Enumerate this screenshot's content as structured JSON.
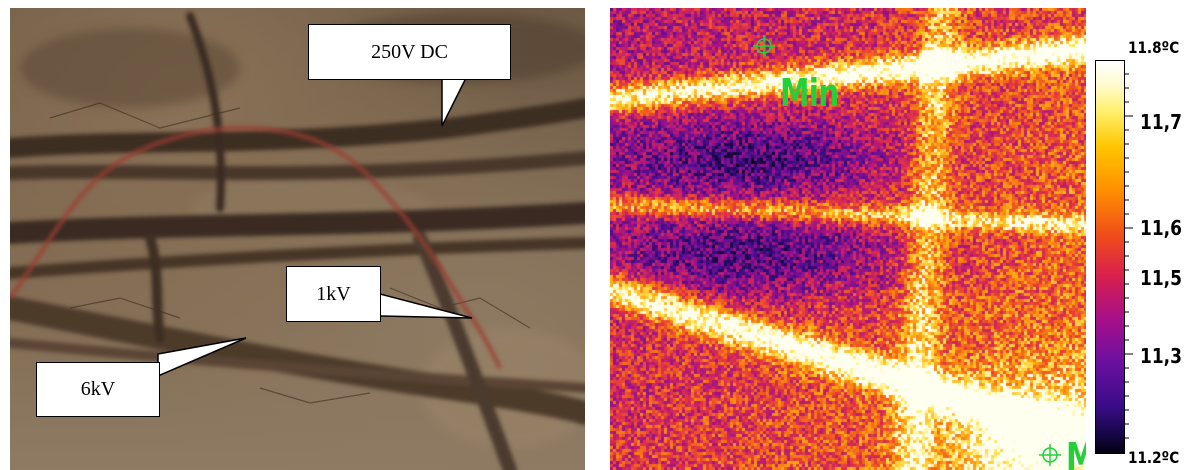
{
  "photo": {
    "callouts": {
      "dc": "250V DC",
      "kv1": "1kV",
      "kv6": "6kV"
    }
  },
  "thermal": {
    "markers": {
      "min_label": "Min",
      "max_label_partial": "M"
    }
  },
  "scale": {
    "max": "11.8ºC",
    "min": "11.2ºC",
    "ticks": [
      "11,7",
      "11,6",
      "11,5",
      "11,3"
    ]
  },
  "colors": {
    "marker_green": "#22d13a",
    "callout_border": "#000000",
    "callout_fill": "#ffffff"
  }
}
